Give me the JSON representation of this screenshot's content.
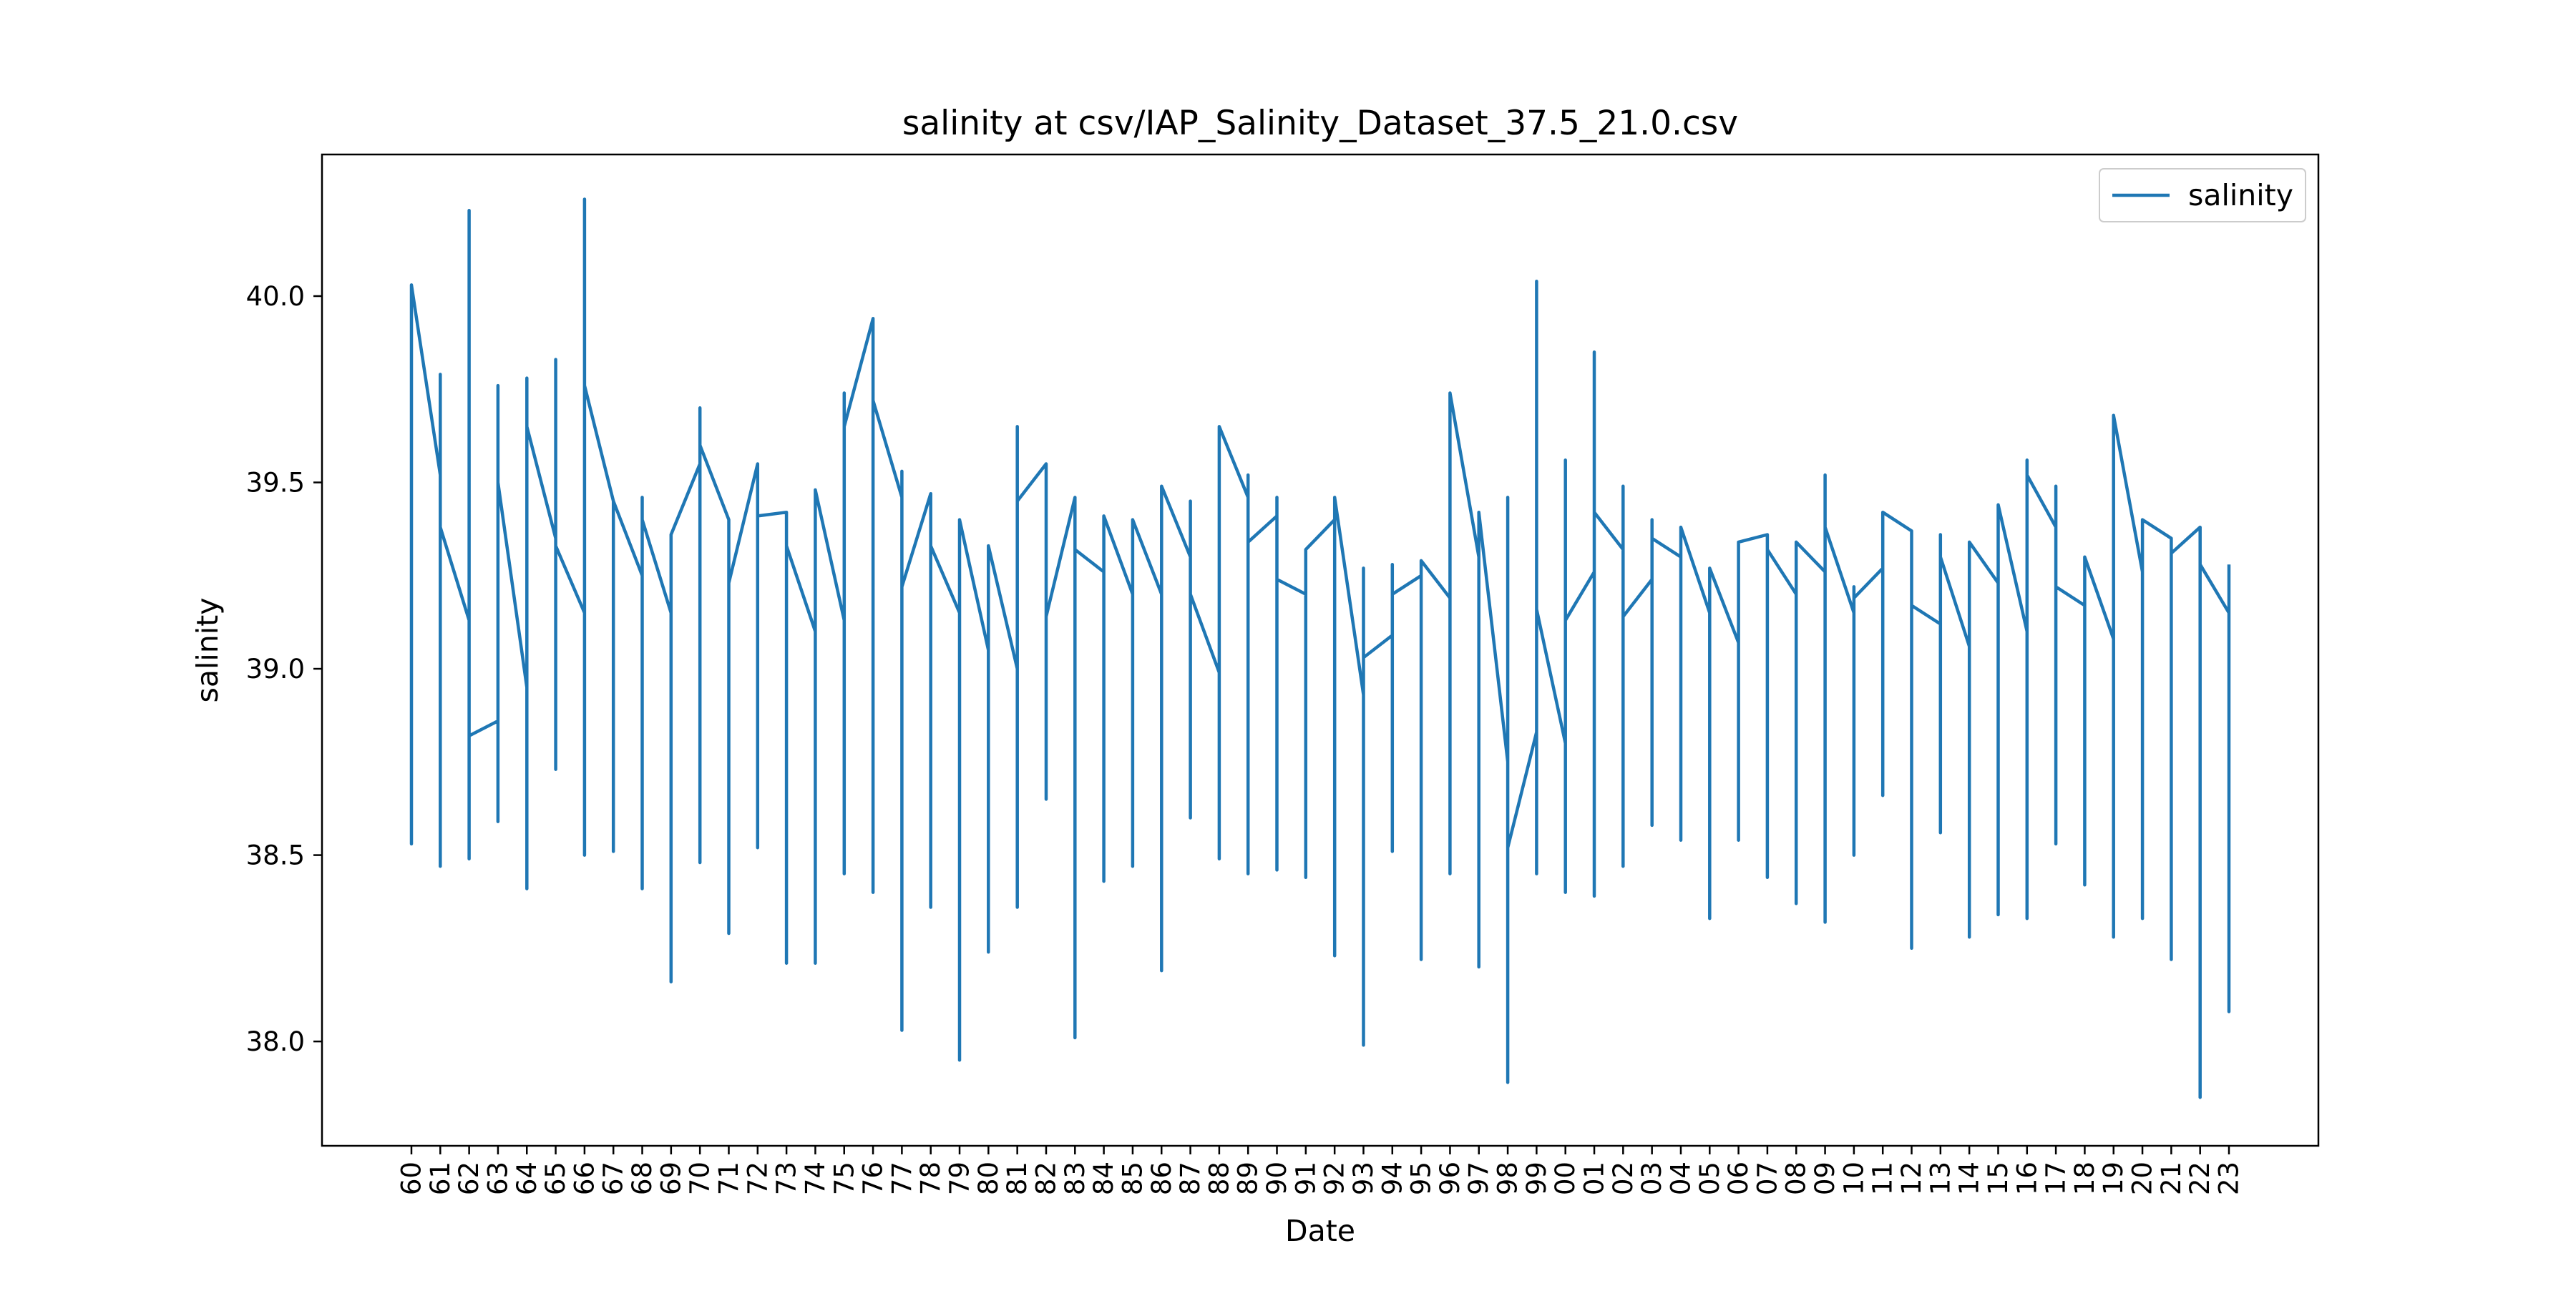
{
  "chart_data": {
    "type": "line",
    "title": "salinity at csv/IAP_Salinity_Dataset_37.5_21.0.csv",
    "xlabel": "Date",
    "ylabel": "salinity",
    "legend": {
      "position": "top-right",
      "entries": [
        "salinity"
      ]
    },
    "grid": false,
    "ylim": [
      37.72,
      40.38
    ],
    "yticks": [
      38.0,
      38.5,
      39.0,
      39.5,
      40.0
    ],
    "ytick_labels": [
      "38.0",
      "38.5",
      "39.0",
      "39.5",
      "40.0"
    ],
    "xlim": [
      1956.9,
      2026.1
    ],
    "xticks": [
      1960,
      1961,
      1962,
      1963,
      1964,
      1965,
      1966,
      1967,
      1968,
      1969,
      1970,
      1971,
      1972,
      1973,
      1974,
      1975,
      1976,
      1977,
      1978,
      1979,
      1980,
      1981,
      1982,
      1983,
      1984,
      1985,
      1986,
      1987,
      1988,
      1989,
      1990,
      1991,
      1992,
      1993,
      1994,
      1995,
      1996,
      1997,
      1998,
      1999,
      2000,
      2001,
      2002,
      2003,
      2004,
      2005,
      2006,
      2007,
      2008,
      2009,
      2010,
      2011,
      2012,
      2013,
      2014,
      2015,
      2016,
      2017,
      2018,
      2019,
      2020,
      2021,
      2022,
      2023
    ],
    "xtick_labels": [
      "60",
      "61",
      "62",
      "63",
      "64",
      "65",
      "66",
      "67",
      "68",
      "69",
      "70",
      "71",
      "72",
      "73",
      "74",
      "75",
      "76",
      "77",
      "78",
      "79",
      "80",
      "81",
      "82",
      "83",
      "84",
      "85",
      "86",
      "87",
      "88",
      "89",
      "90",
      "91",
      "92",
      "93",
      "94",
      "95",
      "96",
      "97",
      "98",
      "99",
      "00",
      "01",
      "02",
      "03",
      "04",
      "05",
      "06",
      "07",
      "08",
      "09",
      "10",
      "11",
      "12",
      "13",
      "14",
      "15",
      "16",
      "17",
      "18",
      "19",
      "20",
      "21",
      "22",
      "23"
    ],
    "series": [
      {
        "name": "salinity",
        "color": "#1f77b4",
        "points": [
          {
            "x": 1960,
            "values": [
              38.62,
              38.53,
              40.03
            ]
          },
          {
            "x": 1961,
            "values": [
              39.52,
              38.47,
              39.79,
              39.38
            ]
          },
          {
            "x": 1962,
            "values": [
              39.13,
              38.49,
              40.23,
              38.82
            ]
          },
          {
            "x": 1963,
            "values": [
              38.86,
              38.59,
              39.76,
              39.5
            ]
          },
          {
            "x": 1964,
            "values": [
              38.95,
              38.41,
              39.78,
              39.65
            ]
          },
          {
            "x": 1965,
            "values": [
              39.35,
              38.73,
              39.83,
              39.33
            ]
          },
          {
            "x": 1966,
            "values": [
              39.15,
              38.5,
              40.26,
              39.76
            ]
          },
          {
            "x": 1967,
            "values": [
              39.45,
              38.51,
              39.45
            ]
          },
          {
            "x": 1968,
            "values": [
              39.25,
              38.41,
              39.46,
              39.4
            ]
          },
          {
            "x": 1969,
            "values": [
              39.15,
              38.16,
              39.36
            ]
          },
          {
            "x": 1970,
            "values": [
              39.55,
              38.48,
              39.7,
              39.6
            ]
          },
          {
            "x": 1971,
            "values": [
              39.4,
              38.29,
              39.23
            ]
          },
          {
            "x": 1972,
            "values": [
              39.55,
              38.52,
              39.41
            ]
          },
          {
            "x": 1973,
            "values": [
              39.42,
              38.21,
              39.33
            ]
          },
          {
            "x": 1974,
            "values": [
              39.1,
              38.21,
              39.48
            ]
          },
          {
            "x": 1975,
            "values": [
              39.13,
              38.45,
              39.74,
              39.65
            ]
          },
          {
            "x": 1976,
            "values": [
              39.94,
              38.4,
              39.72
            ]
          },
          {
            "x": 1977,
            "values": [
              39.46,
              38.03,
              39.53,
              39.22
            ]
          },
          {
            "x": 1978,
            "values": [
              39.47,
              38.36,
              39.33
            ]
          },
          {
            "x": 1979,
            "values": [
              39.15,
              37.95,
              39.4
            ]
          },
          {
            "x": 1980,
            "values": [
              39.05,
              38.24,
              39.33
            ]
          },
          {
            "x": 1981,
            "values": [
              39.0,
              38.36,
              39.65,
              39.45
            ]
          },
          {
            "x": 1982,
            "values": [
              39.55,
              38.65,
              39.14
            ]
          },
          {
            "x": 1983,
            "values": [
              39.46,
              38.01,
              39.32
            ]
          },
          {
            "x": 1984,
            "values": [
              39.26,
              38.43,
              39.41
            ]
          },
          {
            "x": 1985,
            "values": [
              39.2,
              38.47,
              39.4
            ]
          },
          {
            "x": 1986,
            "values": [
              39.2,
              38.19,
              39.49
            ]
          },
          {
            "x": 1987,
            "values": [
              39.3,
              38.6,
              39.45,
              39.2
            ]
          },
          {
            "x": 1988,
            "values": [
              38.99,
              38.49,
              39.65
            ]
          },
          {
            "x": 1989,
            "values": [
              39.46,
              38.45,
              39.52,
              39.34
            ]
          },
          {
            "x": 1990,
            "values": [
              39.41,
              38.46,
              39.46,
              39.24
            ]
          },
          {
            "x": 1991,
            "values": [
              39.2,
              38.44,
              39.32
            ]
          },
          {
            "x": 1992,
            "values": [
              39.4,
              38.23,
              39.46
            ]
          },
          {
            "x": 1993,
            "values": [
              38.93,
              37.99,
              39.27,
              39.03
            ]
          },
          {
            "x": 1994,
            "values": [
              39.09,
              38.51,
              39.28,
              39.2
            ]
          },
          {
            "x": 1995,
            "values": [
              39.25,
              38.22,
              39.29
            ]
          },
          {
            "x": 1996,
            "values": [
              39.19,
              38.45,
              39.74
            ]
          },
          {
            "x": 1997,
            "values": [
              39.3,
              38.2,
              39.42
            ]
          },
          {
            "x": 1998,
            "values": [
              38.75,
              37.89,
              39.46,
              38.52
            ]
          },
          {
            "x": 1999,
            "values": [
              38.83,
              38.45,
              40.04,
              39.16
            ]
          },
          {
            "x": 2000,
            "values": [
              38.8,
              38.4,
              39.56,
              39.13
            ]
          },
          {
            "x": 2001,
            "values": [
              39.26,
              38.39,
              39.85,
              39.42
            ]
          },
          {
            "x": 2002,
            "values": [
              39.32,
              38.47,
              39.49,
              39.14
            ]
          },
          {
            "x": 2003,
            "values": [
              39.24,
              38.58,
              39.4,
              39.35
            ]
          },
          {
            "x": 2004,
            "values": [
              39.3,
              38.54,
              39.38
            ]
          },
          {
            "x": 2005,
            "values": [
              39.15,
              38.33,
              39.27
            ]
          },
          {
            "x": 2006,
            "values": [
              39.07,
              38.54,
              39.34
            ]
          },
          {
            "x": 2007,
            "values": [
              39.36,
              38.44,
              39.32
            ]
          },
          {
            "x": 2008,
            "values": [
              39.2,
              38.37,
              39.34
            ]
          },
          {
            "x": 2009,
            "values": [
              39.26,
              38.32,
              39.52,
              39.38
            ]
          },
          {
            "x": 2010,
            "values": [
              39.15,
              38.5,
              39.22,
              39.19
            ]
          },
          {
            "x": 2011,
            "values": [
              39.27,
              38.66,
              39.42
            ]
          },
          {
            "x": 2012,
            "values": [
              39.37,
              38.25,
              39.17
            ]
          },
          {
            "x": 2013,
            "values": [
              39.12,
              38.56,
              39.36,
              39.3
            ]
          },
          {
            "x": 2014,
            "values": [
              39.06,
              38.28,
              39.34
            ]
          },
          {
            "x": 2015,
            "values": [
              39.23,
              38.34,
              39.44
            ]
          },
          {
            "x": 2016,
            "values": [
              39.1,
              38.33,
              39.56,
              39.52
            ]
          },
          {
            "x": 2017,
            "values": [
              39.38,
              38.53,
              39.49,
              39.22
            ]
          },
          {
            "x": 2018,
            "values": [
              39.17,
              38.42,
              39.3
            ]
          },
          {
            "x": 2019,
            "values": [
              39.08,
              38.28,
              39.68
            ]
          },
          {
            "x": 2020,
            "values": [
              39.26,
              38.33,
              39.4
            ]
          },
          {
            "x": 2021,
            "values": [
              39.35,
              38.22,
              39.31
            ]
          },
          {
            "x": 2022,
            "values": [
              39.38,
              37.85,
              39.28
            ]
          },
          {
            "x": 2023,
            "values": [
              39.15,
              38.08,
              39.28
            ]
          }
        ]
      }
    ]
  }
}
